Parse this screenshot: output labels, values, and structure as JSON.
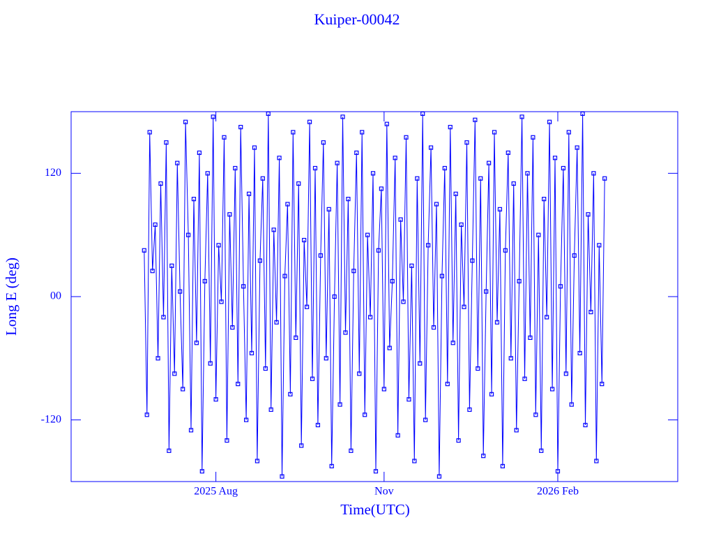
{
  "chart_data": {
    "type": "line",
    "title": "Kuiper-00042",
    "x_label": "Time(UTC)",
    "y_label": "Long E (deg)",
    "categories": [
      null,
      null,
      null,
      null,
      null,
      null,
      null,
      null,
      null,
      null,
      null,
      null,
      null,
      null,
      null,
      null,
      null,
      null,
      null,
      null,
      null,
      null,
      null,
      null,
      null,
      null,
      null,
      null,
      null,
      null,
      null,
      null,
      null,
      null,
      null,
      null,
      null,
      null,
      null,
      null,
      null,
      null,
      null,
      null,
      null,
      null,
      null,
      null,
      null,
      null,
      null,
      null,
      "2025 Aug",
      null,
      null,
      null,
      null,
      null,
      null,
      null,
      null,
      null,
      null,
      null,
      null,
      null,
      null,
      null,
      null,
      null,
      null,
      null,
      null,
      null,
      null,
      null,
      null,
      null,
      null,
      null,
      null,
      null,
      null,
      null,
      null,
      null,
      null,
      null,
      null,
      null,
      null,
      null,
      null,
      null,
      null,
      null,
      null,
      null,
      null,
      null,
      null,
      null,
      null,
      null,
      null,
      null,
      null,
      null,
      null,
      null,
      null,
      null,
      null,
      "Nov",
      null,
      null,
      null,
      null,
      null,
      null,
      null,
      null,
      null,
      null,
      null,
      null,
      null,
      null,
      null,
      null,
      null,
      null,
      null,
      null,
      null,
      null,
      null,
      null,
      null,
      null,
      null,
      null,
      null,
      null,
      null,
      null,
      null,
      null,
      null,
      null,
      null,
      null,
      null,
      null,
      null,
      null,
      null,
      null,
      null,
      null,
      null,
      null,
      null,
      null,
      null,
      null,
      null,
      null,
      null,
      null,
      null,
      null,
      null,
      null,
      null,
      null,
      "2026 Feb",
      null,
      null,
      null,
      null,
      null,
      null,
      null,
      null,
      null,
      null,
      null,
      null,
      null,
      null,
      null,
      null,
      null,
      null,
      null,
      null,
      null,
      null,
      null,
      null,
      null,
      null,
      null,
      null,
      null,
      null,
      null,
      null,
      null,
      null,
      null,
      null,
      null,
      null,
      null,
      null,
      null,
      null,
      null
    ],
    "series": [
      {
        "name": "Kuiper-00042",
        "color": "#0000ff",
        "values": [
          null,
          null,
          null,
          null,
          null,
          null,
          null,
          null,
          null,
          null,
          null,
          null,
          null,
          null,
          null,
          null,
          null,
          null,
          null,
          null,
          null,
          null,
          null,
          null,
          null,
          null,
          45,
          -115,
          160,
          25,
          70,
          -60,
          110,
          -20,
          150,
          -150,
          30,
          -75,
          130,
          5,
          -90,
          170,
          60,
          -130,
          95,
          -45,
          140,
          -170,
          15,
          120,
          -65,
          175,
          -100,
          50,
          -5,
          155,
          -140,
          80,
          -30,
          125,
          -85,
          165,
          10,
          -120,
          100,
          -55,
          145,
          -160,
          35,
          115,
          -70,
          178,
          -110,
          65,
          -25,
          135,
          -175,
          20,
          90,
          -95,
          160,
          -40,
          110,
          -145,
          55,
          -10,
          170,
          -80,
          125,
          -125,
          40,
          150,
          -60,
          85,
          -165,
          0,
          130,
          -105,
          175,
          -35,
          95,
          -150,
          25,
          140,
          -75,
          160,
          -115,
          60,
          -20,
          120,
          -170,
          45,
          105,
          -90,
          168,
          -50,
          15,
          135,
          -135,
          75,
          -5,
          155,
          -100,
          30,
          -160,
          115,
          -65,
          178,
          -120,
          50,
          145,
          -30,
          90,
          -175,
          20,
          125,
          -85,
          165,
          -45,
          100,
          -140,
          70,
          -10,
          150,
          -110,
          35,
          172,
          -70,
          115,
          -155,
          5,
          130,
          -95,
          160,
          -25,
          85,
          -165,
          45,
          140,
          -60,
          110,
          -130,
          15,
          175,
          -80,
          120,
          -40,
          155,
          -115,
          60,
          -150,
          95,
          -20,
          170,
          -90,
          135,
          -170,
          10,
          125,
          -75,
          160,
          -105,
          40,
          145,
          -55,
          178,
          -125,
          80,
          -15,
          120,
          -160,
          50,
          -85,
          115,
          null,
          null,
          null,
          null,
          null,
          null,
          null,
          null,
          null,
          null,
          null,
          null,
          null,
          null,
          null,
          null,
          null,
          null,
          null,
          null,
          null,
          null,
          null,
          null,
          null,
          null
        ]
      }
    ],
    "ylim": [
      -180,
      180
    ],
    "yticks": [
      -120,
      {
        "value": 0,
        "label": "00"
      },
      120
    ],
    "markers": true
  }
}
